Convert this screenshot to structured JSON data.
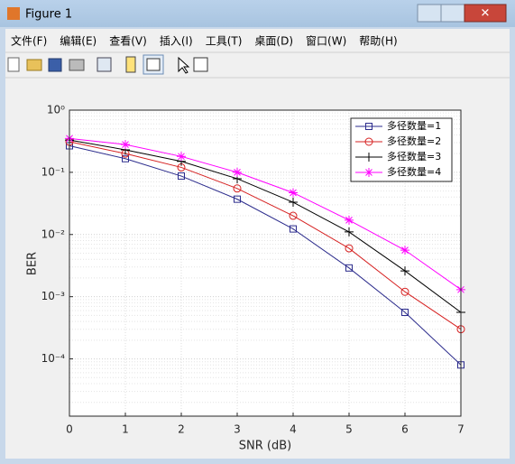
{
  "window": {
    "title": "Figure 1",
    "menu": [
      "文件(F)",
      "编辑(E)",
      "查看(V)",
      "插入(I)",
      "工具(T)",
      "桌面(D)",
      "窗口(W)",
      "帮助(H)"
    ]
  },
  "chart_data": {
    "type": "line",
    "xlabel": "SNR (dB)",
    "ylabel": "BER",
    "x": [
      0,
      1,
      2,
      3,
      4,
      5,
      6,
      7
    ],
    "series": [
      {
        "name": "多径数量=1",
        "color": "#2b2b8c",
        "marker": "square",
        "values": [
          0.267,
          0.166,
          0.087,
          0.037,
          0.0123,
          0.0029,
          0.00056,
          8e-05
        ]
      },
      {
        "name": "多径数量=2",
        "color": "#d62020",
        "marker": "circle",
        "values": [
          0.31,
          0.2,
          0.12,
          0.055,
          0.02,
          0.006,
          0.0012,
          0.0003
        ]
      },
      {
        "name": "多径数量=3",
        "color": "#000000",
        "marker": "plus",
        "values": [
          0.33,
          0.23,
          0.15,
          0.079,
          0.033,
          0.011,
          0.0026,
          0.00056
        ]
      },
      {
        "name": "多径数量=4",
        "color": "#ff00ff",
        "marker": "star",
        "values": [
          0.35,
          0.28,
          0.18,
          0.1,
          0.047,
          0.017,
          0.0056,
          0.0013
        ]
      }
    ],
    "xlim": [
      0,
      7
    ],
    "xticks": [
      0,
      1,
      2,
      3,
      4,
      5,
      6,
      7
    ],
    "ylim": [
      1.2e-05,
      1
    ],
    "ylog": true,
    "yticks": [
      {
        "value": 0.0001,
        "label": "10⁻⁴"
      },
      {
        "value": 0.001,
        "label": "10⁻³"
      },
      {
        "value": 0.01,
        "label": "10⁻²"
      },
      {
        "value": 0.1,
        "label": "10⁻¹"
      },
      {
        "value": 1,
        "label": "10⁰"
      }
    ],
    "grid": true,
    "minor_grid": true,
    "legend": "northeast"
  }
}
